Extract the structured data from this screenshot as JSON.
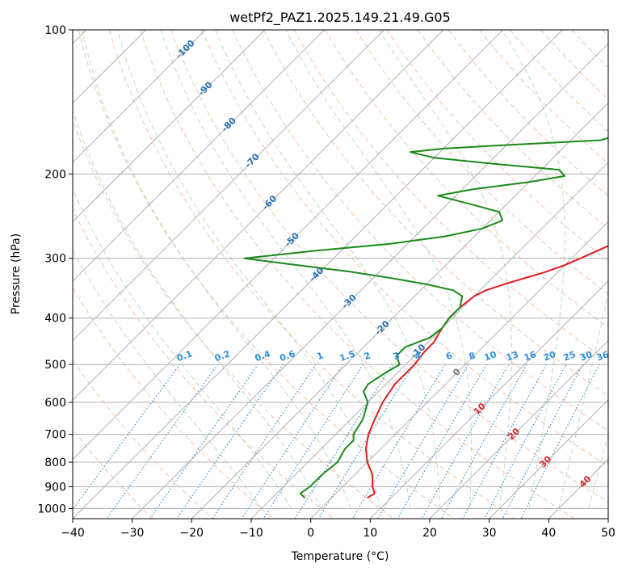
{
  "chart_data": {
    "type": "line",
    "title": "wetPf2_PAZ1.2025.149.21.49.G05",
    "xlabel": "Temperature (°C)",
    "ylabel": "Pressure (hPa)",
    "xlim": [
      -40,
      50
    ],
    "ylim": [
      1050,
      100
    ],
    "y_scale": "log",
    "grid": true,
    "x_ticks": [
      "−40",
      "−30",
      "−20",
      "−10",
      "0",
      "10",
      "20",
      "30",
      "40",
      "50"
    ],
    "y_ticks": [
      "100",
      "200",
      "300",
      "400",
      "500",
      "600",
      "700",
      "800",
      "900",
      "1000"
    ],
    "colors": {
      "temperature": "#e31a1c",
      "dewpoint": "#1a8a1a",
      "isotherm": "#b0b0b0",
      "isobar": "#b0b0b0",
      "dry_adiabat": "#f4a582",
      "moist_adiabat": "#a6d6a6",
      "mixing_ratio": "#2c8fe0",
      "temp_label": "#2a6fb0",
      "dry_label": "#d62728"
    },
    "series": [
      {
        "name": "",
        "role": "temperature",
        "pressure": [
          950,
          930,
          900,
          850,
          800,
          750,
          700,
          650,
          600,
          550,
          500,
          470,
          450,
          420,
          400,
          380,
          360,
          350,
          340,
          330,
          320,
          310,
          300,
          280,
          260,
          240,
          220,
          210,
          200,
          190,
          180,
          172,
          165,
          160,
          155,
          150,
          145,
          140,
          135,
          130,
          125,
          120,
          115,
          110,
          105,
          100
        ],
        "temperature": [
          6,
          6.5,
          5,
          3,
          0,
          -2.5,
          -4.5,
          -6,
          -7.5,
          -8.5,
          -8.5,
          -9,
          -9,
          -10,
          -10.5,
          -10.5,
          -10,
          -9,
          -7,
          -4.5,
          -2,
          0,
          1.5,
          4.5,
          8,
          11.5,
          15,
          16.5,
          18.5,
          20.5,
          22.5,
          22.5,
          23.5,
          25,
          26.5,
          28,
          29.5,
          30.5,
          31,
          31.5,
          32.5,
          33,
          33.5,
          34,
          34.5,
          35
        ]
      },
      {
        "name": "",
        "role": "dewpoint",
        "pressure": [
          950,
          930,
          900,
          850,
          800,
          750,
          720,
          700,
          650,
          600,
          570,
          550,
          520,
          500,
          480,
          460,
          440,
          420,
          400,
          380,
          360,
          350,
          340,
          330,
          320,
          310,
          300,
          290,
          280,
          270,
          260,
          250,
          240,
          230,
          222,
          215,
          208,
          202,
          196,
          190,
          185,
          180,
          177,
          174,
          170,
          166,
          162,
          158,
          154,
          150,
          145,
          140,
          135,
          130,
          125,
          120,
          115,
          110,
          105,
          100
        ],
        "dewpoint": [
          -4.5,
          -6,
          -5.5,
          -5.5,
          -5,
          -6,
          -6,
          -7,
          -8,
          -10,
          -12.5,
          -13,
          -12,
          -11,
          -13,
          -13,
          -10.5,
          -10,
          -10.5,
          -10.5,
          -12,
          -14.5,
          -20,
          -27,
          -35,
          -45,
          -55,
          -45,
          -33,
          -25,
          -20,
          -18,
          -20,
          -27,
          -33,
          -28,
          -20,
          -15,
          -17,
          -30,
          -40,
          -45,
          -40,
          -30,
          -15,
          -13,
          -13,
          -13.5,
          -14,
          -14,
          -13,
          -11,
          -9,
          -7,
          -5.5,
          -4.5,
          -3,
          -1.5,
          -0.5,
          0.5
        ]
      }
    ],
    "isotherm_labels": [
      "-100",
      "-90",
      "-80",
      "-70",
      "-60",
      "-50",
      "-40",
      "-30",
      "-20",
      "-10"
    ],
    "mixing_ratio_labels": [
      "0.1",
      "0.2",
      "0.4",
      "0.6",
      "1",
      "1.5",
      "2",
      "3",
      "4",
      "6",
      "8",
      "10",
      "13",
      "16",
      "20",
      "25",
      "30",
      "36"
    ],
    "isotherm_label_gray": "0",
    "dry_adiabat_labels": [
      "10",
      "20",
      "30",
      "40"
    ]
  }
}
